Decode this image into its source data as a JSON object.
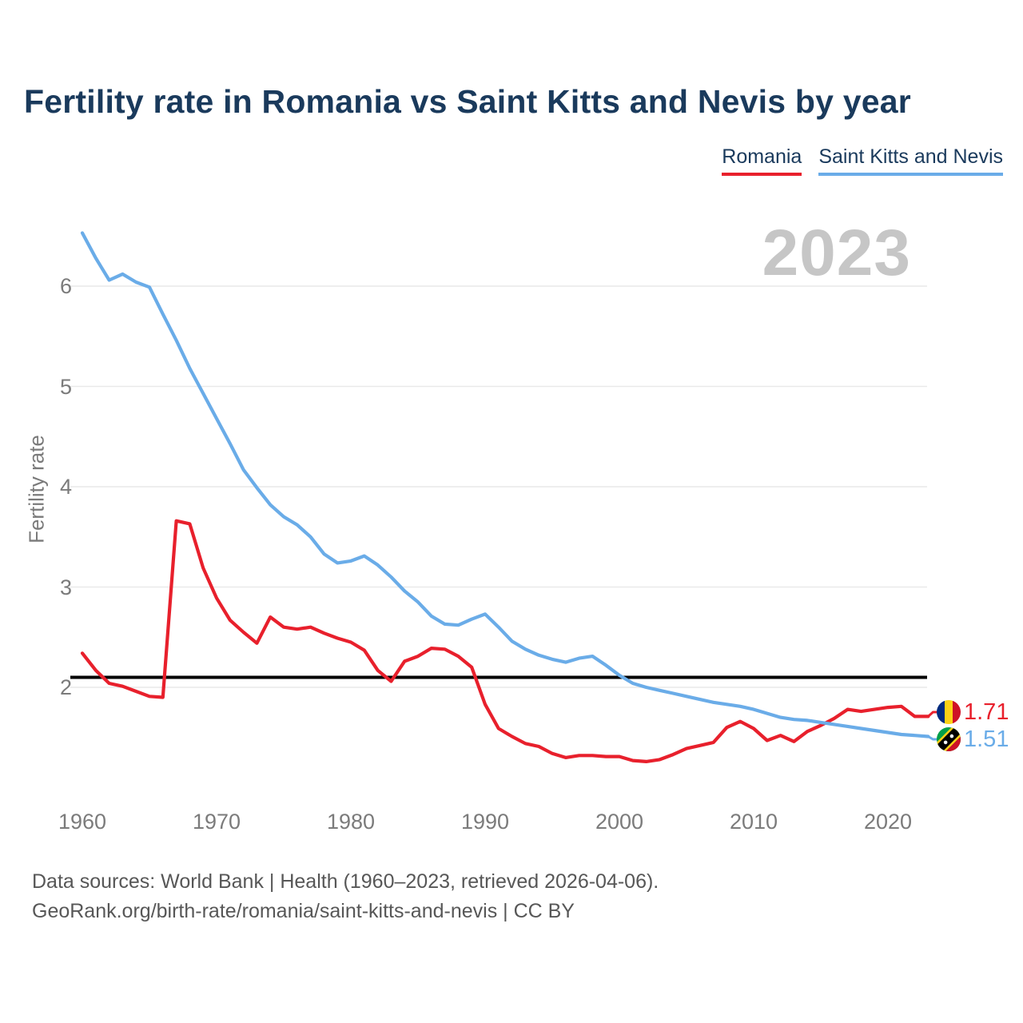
{
  "title": "Fertility rate in Romania vs Saint Kitts and Nevis by year",
  "watermark": "2023",
  "legend": [
    {
      "label": "Romania",
      "color": "#e8202c"
    },
    {
      "label": "Saint Kitts and Nevis",
      "color": "#6aace8"
    }
  ],
  "icons": {
    "romania_flag": "romania-flag-icon",
    "saint_kitts_flag": "saint-kitts-nevis-flag-icon"
  },
  "chart_data": {
    "type": "line",
    "title": "Fertility rate in Romania vs Saint Kitts and Nevis by year",
    "xlabel": "",
    "ylabel": "Fertility rate",
    "grid": "horizontal",
    "legend_position": "top-right",
    "year_watermark": "2023",
    "reference_line": 2.1,
    "ylim": [
      1.2,
      6.6
    ],
    "yticks": [
      2,
      3,
      4,
      5,
      6
    ],
    "xticks": [
      1960,
      1970,
      1980,
      1990,
      2000,
      2010,
      2020
    ],
    "x": [
      1960,
      1961,
      1962,
      1963,
      1964,
      1965,
      1966,
      1967,
      1968,
      1969,
      1970,
      1971,
      1972,
      1973,
      1974,
      1975,
      1976,
      1977,
      1978,
      1979,
      1980,
      1981,
      1982,
      1983,
      1984,
      1985,
      1986,
      1987,
      1988,
      1989,
      1990,
      1991,
      1992,
      1993,
      1994,
      1995,
      1996,
      1997,
      1998,
      1999,
      2000,
      2001,
      2002,
      2003,
      2004,
      2005,
      2006,
      2007,
      2008,
      2009,
      2010,
      2011,
      2012,
      2013,
      2014,
      2015,
      2016,
      2017,
      2018,
      2019,
      2020,
      2021,
      2022,
      2023
    ],
    "series": [
      {
        "name": "Romania",
        "color": "#e8202c",
        "end_label": "1.71",
        "values": [
          2.34,
          2.17,
          2.04,
          2.01,
          1.96,
          1.91,
          1.9,
          3.66,
          3.63,
          3.19,
          2.89,
          2.67,
          2.55,
          2.44,
          2.7,
          2.6,
          2.58,
          2.6,
          2.54,
          2.49,
          2.45,
          2.37,
          2.17,
          2.06,
          2.26,
          2.31,
          2.39,
          2.38,
          2.31,
          2.2,
          1.83,
          1.59,
          1.51,
          1.44,
          1.41,
          1.34,
          1.3,
          1.32,
          1.32,
          1.31,
          1.31,
          1.27,
          1.26,
          1.28,
          1.33,
          1.39,
          1.42,
          1.45,
          1.6,
          1.66,
          1.59,
          1.47,
          1.52,
          1.46,
          1.56,
          1.62,
          1.69,
          1.78,
          1.76,
          1.78,
          1.8,
          1.81,
          1.71,
          1.71
        ]
      },
      {
        "name": "Saint Kitts and Nevis",
        "color": "#6aace8",
        "end_label": "1.51",
        "values": [
          6.53,
          6.28,
          6.06,
          6.12,
          6.04,
          5.99,
          5.72,
          5.46,
          5.18,
          4.93,
          4.68,
          4.43,
          4.17,
          3.99,
          3.82,
          3.7,
          3.62,
          3.5,
          3.33,
          3.24,
          3.26,
          3.31,
          3.22,
          3.1,
          2.96,
          2.85,
          2.71,
          2.63,
          2.62,
          2.68,
          2.73,
          2.6,
          2.46,
          2.38,
          2.32,
          2.28,
          2.25,
          2.29,
          2.31,
          2.22,
          2.12,
          2.04,
          2.0,
          1.97,
          1.94,
          1.91,
          1.88,
          1.85,
          1.83,
          1.81,
          1.78,
          1.74,
          1.7,
          1.68,
          1.67,
          1.65,
          1.63,
          1.61,
          1.59,
          1.57,
          1.55,
          1.53,
          1.52,
          1.51
        ]
      }
    ]
  },
  "footer": {
    "line1": "Data sources: World Bank | Health (1960–2023, retrieved 2026-04-06).",
    "line2": "GeoRank.org/birth-rate/romania/saint-kitts-and-nevis | CC BY"
  }
}
